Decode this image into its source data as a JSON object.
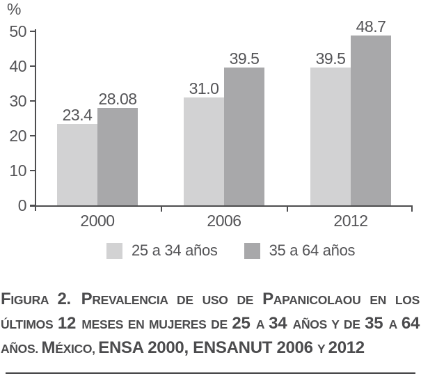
{
  "chart_data": {
    "type": "bar",
    "title": "",
    "xlabel": "",
    "ylabel": "%",
    "ylim": [
      0,
      50
    ],
    "y_ticks": [
      0,
      10,
      20,
      30,
      40,
      50
    ],
    "grid": false,
    "legend_position": "bottom",
    "categories": [
      "2000",
      "2006",
      "2012"
    ],
    "series": [
      {
        "name": "25 a 34 años",
        "color": "#d2d2d3",
        "values": [
          23.4,
          31.0,
          39.5
        ],
        "labels": [
          "23.4",
          "31.0",
          "39.5"
        ]
      },
      {
        "name": "35 a 64 años",
        "color": "#a8a8aa",
        "values": [
          28.08,
          39.5,
          48.7
        ],
        "labels": [
          "28.08",
          "39.5",
          "48.7"
        ]
      }
    ]
  },
  "caption": {
    "lines": [
      {
        "justify": true,
        "segments": [
          {
            "style": "caps-large",
            "text": "F"
          },
          {
            "style": "caps-small",
            "text": "igura "
          },
          {
            "style": "caps-large",
            "text": "2. P"
          },
          {
            "style": "caps-small",
            "text": "revalencia de uso de "
          },
          {
            "style": "caps-large",
            "text": "P"
          },
          {
            "style": "caps-small",
            "text": "apanicolaou en los"
          }
        ]
      },
      {
        "justify": true,
        "segments": [
          {
            "style": "caps-small",
            "text": "últimos "
          },
          {
            "style": "caps-large",
            "text": "12 "
          },
          {
            "style": "caps-small",
            "text": "meses en mujeres de "
          },
          {
            "style": "caps-large",
            "text": "25 "
          },
          {
            "style": "caps-small",
            "text": "a "
          },
          {
            "style": "caps-large",
            "text": "34 "
          },
          {
            "style": "caps-small",
            "text": "años y de "
          },
          {
            "style": "caps-large",
            "text": "35 "
          },
          {
            "style": "caps-small",
            "text": "a "
          },
          {
            "style": "caps-large",
            "text": "64"
          }
        ]
      },
      {
        "justify": false,
        "segments": [
          {
            "style": "caps-small",
            "text": "años. "
          },
          {
            "style": "caps-large",
            "text": "M"
          },
          {
            "style": "caps-small",
            "text": "éxico, "
          },
          {
            "style": "caps-large",
            "text": "ENSA 2000, ENSANUT 2006 "
          },
          {
            "style": "caps-small",
            "text": "y "
          },
          {
            "style": "caps-large",
            "text": "2012"
          }
        ]
      }
    ]
  },
  "colors": {
    "axis": "#4d4d4f",
    "text": "#545457",
    "caption_text": "#4b4b4d",
    "rule": "#414143",
    "series_light": "#d2d2d3",
    "series_dark": "#a8a8aa"
  }
}
